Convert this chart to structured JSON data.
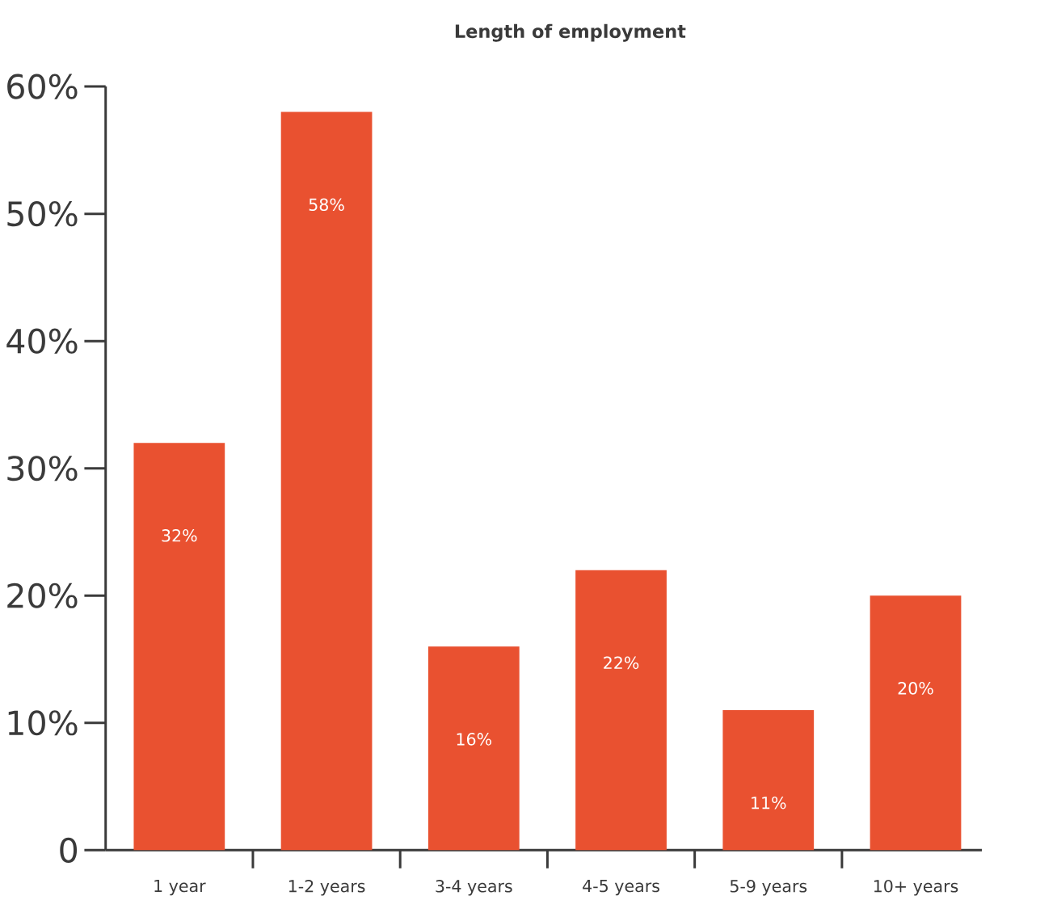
{
  "chart_data": {
    "type": "bar",
    "title": "Length of employment",
    "categories": [
      "1 year",
      "1-2 years",
      "3-4 years",
      "4-5 years",
      "5-9 years",
      "10+ years"
    ],
    "values": [
      32,
      58,
      16,
      22,
      11,
      20
    ],
    "value_labels": [
      "32%",
      "58%",
      "16%",
      "22%",
      "11%",
      "20%"
    ],
    "color": "#e95130",
    "ylim": [
      0,
      60
    ],
    "yticks": [
      0,
      {
        "value": 10,
        "label": "10%"
      },
      {
        "value": 20,
        "label": "20%"
      },
      {
        "value": 30,
        "label": "30%"
      },
      {
        "value": 40,
        "label": "40%"
      },
      {
        "value": 50,
        "label": "50%"
      },
      {
        "value": 60,
        "label": "60%"
      }
    ]
  }
}
